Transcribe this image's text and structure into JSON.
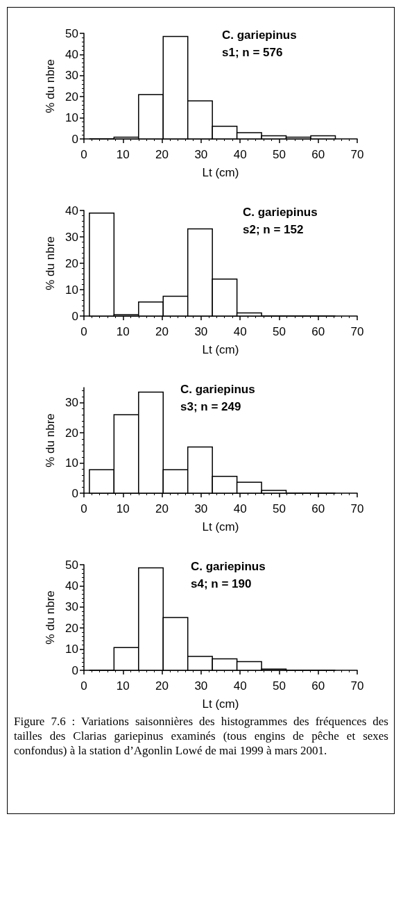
{
  "chart_data": [
    {
      "type": "histogram",
      "annotations": [
        "C. gariepinus",
        "s1; n = 576"
      ],
      "xlabel": "Lt (cm)",
      "ylabel": "% du nbre",
      "bins": [
        1.4,
        7.7,
        14,
        20.3,
        26.6,
        32.9,
        39.2,
        45.5,
        51.8,
        58.1,
        64.4
      ],
      "values": [
        0,
        0.8,
        21,
        48.5,
        18,
        6,
        3,
        1.5,
        0.8,
        1.5
      ],
      "color": "#ffffff",
      "xlim": [
        0,
        70
      ],
      "xticks": [
        0,
        10,
        20,
        30,
        40,
        50,
        60,
        70
      ],
      "ylim": [
        0,
        50
      ],
      "yticks": [
        0,
        10,
        20,
        30,
        40,
        50
      ],
      "grid": false
    },
    {
      "type": "histogram",
      "annotations": [
        "C. gariepinus",
        "s2; n = 152"
      ],
      "xlabel": "Lt (cm)",
      "ylabel": "% du nbre",
      "bins": [
        1.4,
        7.7,
        14,
        20.3,
        26.6,
        32.9,
        39.2,
        45.5,
        51.8,
        58.1,
        64.4
      ],
      "values": [
        39,
        0.5,
        5.3,
        7.5,
        33,
        14,
        1.2,
        0,
        0,
        0
      ],
      "color": "#ffffff",
      "xlim": [
        0,
        70
      ],
      "xticks": [
        0,
        10,
        20,
        30,
        40,
        50,
        60,
        70
      ],
      "ylim": [
        0,
        40
      ],
      "yticks": [
        0,
        10,
        20,
        30,
        40
      ],
      "grid": false
    },
    {
      "type": "histogram",
      "annotations": [
        "C. gariepinus",
        "s3; n = 249"
      ],
      "xlabel": "Lt (cm)",
      "ylabel": "% du nbre",
      "bins": [
        1.4,
        7.7,
        14,
        20.3,
        26.6,
        32.9,
        39.2,
        45.5,
        51.8,
        58.1,
        64.4
      ],
      "values": [
        7.8,
        26,
        33.5,
        7.8,
        15.3,
        5.6,
        3.6,
        0.9,
        0,
        0
      ],
      "color": "#ffffff",
      "xlim": [
        0,
        70
      ],
      "xticks": [
        0,
        10,
        20,
        30,
        40,
        50,
        60,
        70
      ],
      "ylim": [
        0,
        35
      ],
      "yticks": [
        0,
        10,
        20,
        30
      ],
      "grid": false
    },
    {
      "type": "histogram",
      "annotations": [
        "C. gariepinus",
        "s4; n = 190",
        "Figure 7.6 : Variations saisonnières des histogrammes des fréquences des tailles des Clarias gariepinus examinés (tous engins de pêche et sexes confondus) à la station d’Agonlin Lowé de mai 1999 à mars 2001."
      ],
      "xlabel": "Lt (cm)",
      "ylabel": "% du nbre",
      "bins": [
        1.4,
        7.7,
        14,
        20.3,
        26.6,
        32.9,
        39.2,
        45.5,
        51.8,
        58.1,
        64.4
      ],
      "values": [
        0,
        10.8,
        48.5,
        25,
        6.6,
        5.4,
        4.1,
        0.6,
        0,
        0
      ],
      "color": "#ffffff",
      "xlim": [
        0,
        70
      ],
      "xticks": [
        0,
        10,
        20,
        30,
        40,
        50,
        60,
        70
      ],
      "ylim": [
        0,
        50
      ],
      "yticks": [
        0,
        10,
        20,
        30,
        40,
        50
      ],
      "grid": false
    }
  ]
}
